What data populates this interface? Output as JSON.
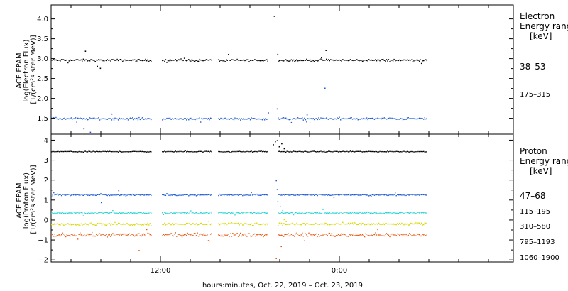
{
  "chart_data": [
    {
      "type": "scatter",
      "panel": "electron",
      "ylabel_lines": [
        "ACE EPAM",
        "log(Electron Flux)",
        "[1/(cm²s ster MeV)]"
      ],
      "ylim": [
        1.1,
        4.35
      ],
      "yticks": [
        "1.5",
        "2.0",
        "2.5",
        "3.0",
        "3.5",
        "4.0"
      ],
      "legend_title": [
        "Electron",
        "Energy ranges",
        "[keV]"
      ],
      "series": [
        {
          "name": "38–53",
          "color": "#000000",
          "base": 2.97,
          "noise": 0.04,
          "segments": [
            [
              0.0,
              20.2
            ],
            [
              22.3,
              32.2
            ],
            [
              33.6,
              43.7
            ],
            [
              45.6,
              75.6
            ]
          ],
          "outliers": [
            [
              6.8,
              3.2
            ],
            [
              9.8,
              2.77
            ],
            [
              9.2,
              2.82
            ],
            [
              44.8,
              4.08
            ],
            [
              45.5,
              3.12
            ],
            [
              55.2,
              3.22
            ],
            [
              54.3,
              3.04
            ]
          ]
        },
        {
          "name": "175–315",
          "color": "#1e5bd6",
          "base": 1.5,
          "noise": 0.04,
          "segments": [
            [
              0.0,
              20.2
            ],
            [
              22.3,
              32.2
            ],
            [
              33.6,
              43.7
            ],
            [
              45.6,
              75.6
            ]
          ],
          "outliers": [
            [
              6.5,
              1.25
            ],
            [
              7.8,
              1.16
            ],
            [
              12.1,
              1.62
            ],
            [
              43.6,
              1.65
            ],
            [
              45.4,
              1.75
            ],
            [
              55.0,
              2.27
            ],
            [
              51.4,
              1.6
            ]
          ]
        }
      ]
    },
    {
      "type": "scatter",
      "panel": "proton",
      "ylabel_lines": [
        "ACE EPAM",
        "log(Proton Flux)",
        "[1/(cm²s ster MeV)]"
      ],
      "ylim": [
        -2.1,
        4.3
      ],
      "yticks": [
        "−2",
        "−1",
        "0",
        "1",
        "2",
        "3",
        "4"
      ],
      "legend_title": [
        "Proton",
        "Energy ranges",
        "[keV]"
      ],
      "series": [
        {
          "name": "47–68",
          "color": "#000000",
          "base": 3.45,
          "noise": 0.03,
          "segments": [
            [
              0.0,
              20.2
            ],
            [
              22.3,
              32.2
            ],
            [
              33.6,
              43.7
            ],
            [
              45.6,
              75.6
            ]
          ],
          "outliers": [
            [
              44.6,
              3.8
            ],
            [
              45.0,
              3.95
            ],
            [
              45.4,
              4.0
            ],
            [
              45.8,
              3.7
            ],
            [
              46.3,
              3.85
            ],
            [
              46.8,
              3.6
            ]
          ]
        },
        {
          "name": "115–195",
          "color": "#1e5bd6",
          "base": 1.28,
          "noise": 0.05,
          "segments": [
            [
              0.0,
              20.2
            ],
            [
              22.3,
              32.2
            ],
            [
              33.6,
              43.7
            ],
            [
              45.6,
              75.6
            ]
          ],
          "outliers": [
            [
              13.5,
              1.5
            ],
            [
              10.0,
              0.9
            ],
            [
              45.2,
              2.0
            ],
            [
              45.4,
              1.55
            ]
          ]
        },
        {
          "name": "310–580",
          "color": "#22d3d3",
          "base": 0.38,
          "noise": 0.06,
          "segments": [
            [
              0.0,
              20.2
            ],
            [
              22.3,
              32.2
            ],
            [
              33.6,
              43.7
            ],
            [
              45.6,
              75.6
            ]
          ],
          "outliers": [
            [
              45.5,
              0.95
            ],
            [
              46.0,
              0.7
            ],
            [
              46.5,
              0.5
            ]
          ]
        },
        {
          "name": "795–1193",
          "color": "#d8d800",
          "base": -0.18,
          "noise": 0.09,
          "segments": [
            [
              0.0,
              20.2
            ],
            [
              22.3,
              32.2
            ],
            [
              33.6,
              43.7
            ],
            [
              45.6,
              75.6
            ]
          ],
          "outliers": [
            [
              46.8,
              0.05
            ],
            [
              47.2,
              -0.05
            ]
          ]
        },
        {
          "name": "1060–1900",
          "color": "#e85a14",
          "base": -0.72,
          "noise": 0.13,
          "segments": [
            [
              0.0,
              20.2
            ],
            [
              22.3,
              32.2
            ],
            [
              33.6,
              43.7
            ],
            [
              45.6,
              75.6
            ]
          ],
          "outliers": [
            [
              17.6,
              -1.5
            ],
            [
              45.2,
              -1.9
            ],
            [
              46.2,
              -1.3
            ]
          ]
        }
      ]
    }
  ],
  "x_axis": {
    "range": [
      0,
      93
    ],
    "major_ticks": [
      {
        "x": 22,
        "label": "12:00"
      },
      {
        "x": 58,
        "label": "0:00"
      }
    ],
    "minor_ticks": [
      4,
      10,
      16,
      28,
      34,
      40,
      46,
      52,
      64,
      70,
      76,
      82,
      88
    ],
    "xlabel": "hours:minutes, Oct. 22, 2019 – Oct. 23, 2019"
  }
}
